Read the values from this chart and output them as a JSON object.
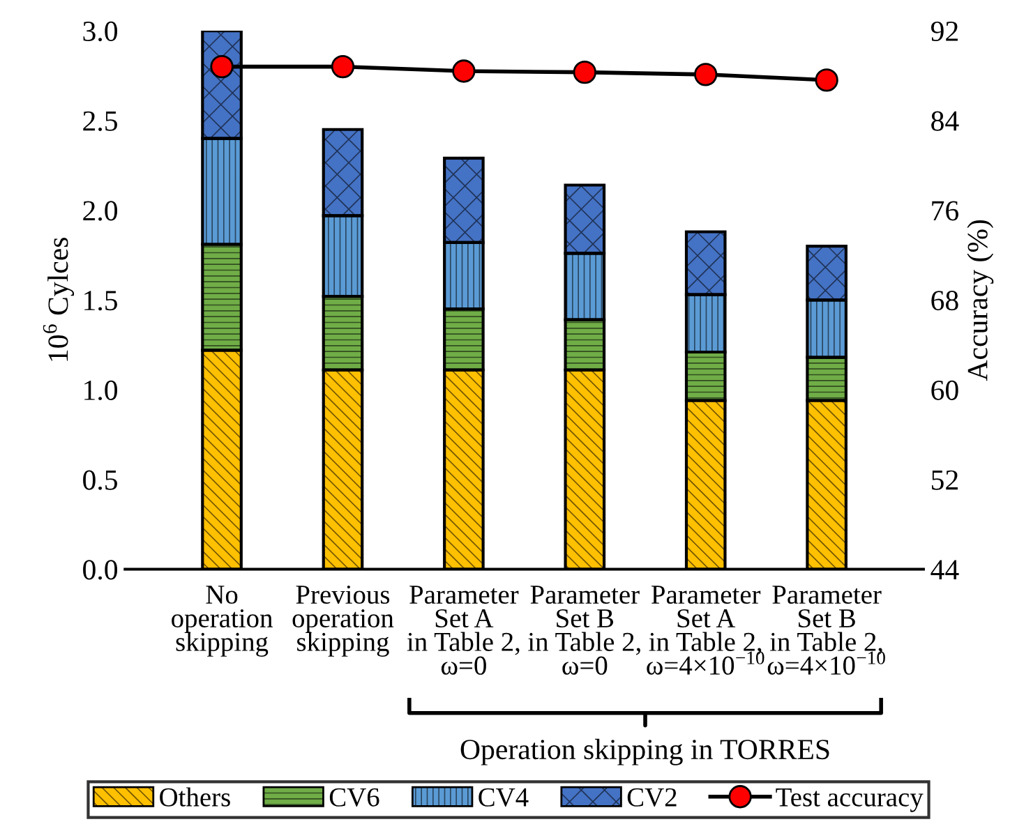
{
  "chart_data": {
    "type": "bar",
    "stacked": true,
    "categories": [
      "No\noperation\nskipping",
      "Previous\noperation\nskipping",
      "Parameter\nSet A\nin Table 2,\nω=0",
      "Parameter\nSet B\nin Table 2,\nω=0",
      "Parameter\nSet A\nin Table 2,\nω=4×10$^{−10}$",
      "Parameter\nSet B\nin Table 2,\nω=4×10$^{−10}$"
    ],
    "ylabel": "10$^{6}$ Cylces",
    "y2label": "Accuracy (%)",
    "ylim": [
      0,
      3.0
    ],
    "yticks": [
      {
        "value": 0,
        "label": "0.0"
      },
      0.5,
      {
        "value": 1,
        "label": "1.0"
      },
      1.5,
      {
        "value": 2,
        "label": "2.0"
      },
      2.5,
      {
        "value": 3,
        "label": "3.0"
      }
    ],
    "y2lim": [
      44,
      92
    ],
    "y2ticks": [
      44,
      52,
      60,
      68,
      76,
      84,
      92
    ],
    "series": [
      {
        "name": "Others",
        "color": "#ffc000",
        "values": [
          1.22,
          1.11,
          1.11,
          1.11,
          0.94,
          0.94
        ]
      },
      {
        "name": "CV6",
        "color": "#70ad47",
        "values": [
          0.59,
          0.41,
          0.34,
          0.28,
          0.27,
          0.24
        ]
      },
      {
        "name": "CV4",
        "color": "#5b9bd5",
        "values": [
          0.59,
          0.45,
          0.37,
          0.37,
          0.32,
          0.32
        ]
      },
      {
        "name": "CV2",
        "color": "#4472c4",
        "values": [
          0.6,
          0.48,
          0.47,
          0.38,
          0.35,
          0.3
        ]
      },
      {
        "name": "Test accuracy",
        "type": "line",
        "axis": "y2",
        "color": "#ff0000",
        "marker": "circle",
        "values": [
          88.8,
          88.8,
          88.4,
          88.3,
          88.1,
          87.6
        ]
      }
    ],
    "annotations": [
      "Operation skipping in TORRES"
    ],
    "legend": "bottom",
    "grid": false
  }
}
